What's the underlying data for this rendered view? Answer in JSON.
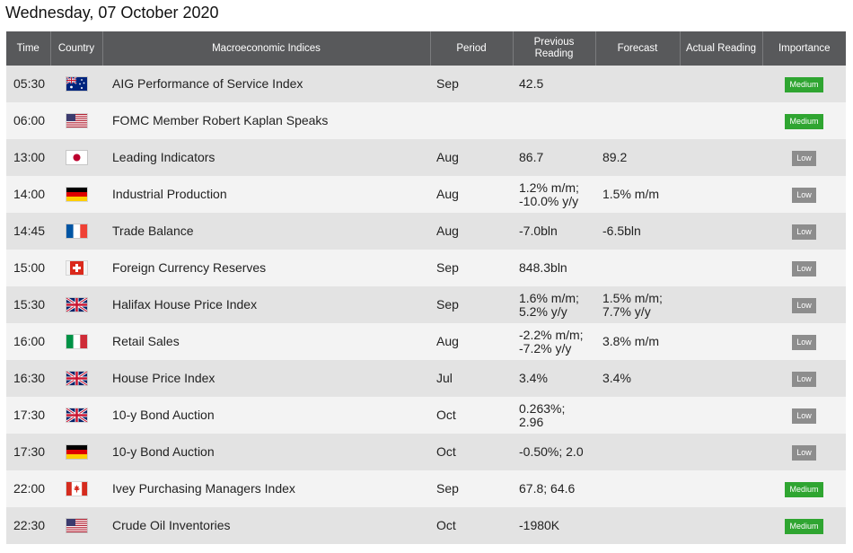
{
  "page_title": "Wednesday, 07 October 2020",
  "headers": {
    "time": "Time",
    "country": "Country",
    "indices": "Macroeconomic Indices",
    "period": "Period",
    "previous": "Previous Reading",
    "forecast": "Forecast",
    "actual": "Actual Reading",
    "importance": "Importance"
  },
  "colors": {
    "header_bg": "#58595b",
    "row_odd": "#e3e3e3",
    "row_even": "#f3f3f3",
    "medium": "#2fa531",
    "low": "#8d8d8d"
  },
  "rows": [
    {
      "time": "05:30",
      "flag": "australia-flag",
      "indicator": "AIG Performance of Service Index",
      "period": "Sep",
      "previous": [
        "42.5"
      ],
      "forecast": [],
      "actual": "",
      "importance": "Medium"
    },
    {
      "time": "06:00",
      "flag": "usa-flag",
      "indicator": "FOMC Member Robert Kaplan Speaks",
      "period": "",
      "previous": [],
      "forecast": [],
      "actual": "",
      "importance": "Medium"
    },
    {
      "time": "13:00",
      "flag": "japan-flag",
      "indicator": "Leading Indicators",
      "period": "Aug",
      "previous": [
        "86.7"
      ],
      "forecast": [
        "89.2"
      ],
      "actual": "",
      "importance": "Low"
    },
    {
      "time": "14:00",
      "flag": "germany-flag",
      "indicator": "Industrial Production",
      "period": "Aug",
      "previous": [
        "1.2% m/m;",
        "-10.0% y/y"
      ],
      "forecast": [
        "1.5% m/m"
      ],
      "actual": "",
      "importance": "Low"
    },
    {
      "time": "14:45",
      "flag": "france-flag",
      "indicator": "Trade Balance",
      "period": "Aug",
      "previous": [
        "-7.0bln"
      ],
      "forecast": [
        "-6.5bln"
      ],
      "actual": "",
      "importance": "Low"
    },
    {
      "time": "15:00",
      "flag": "switzerland-flag",
      "indicator": "Foreign Currency Reserves",
      "period": "Sep",
      "previous": [
        "848.3bln"
      ],
      "forecast": [],
      "actual": "",
      "importance": "Low"
    },
    {
      "time": "15:30",
      "flag": "uk-flag",
      "indicator": "Halifax House Price Index",
      "period": "Sep",
      "previous": [
        "1.6% m/m;",
        "5.2% y/y"
      ],
      "forecast": [
        "1.5% m/m;",
        "7.7% y/y"
      ],
      "actual": "",
      "importance": "Low"
    },
    {
      "time": "16:00",
      "flag": "italy-flag",
      "indicator": "Retail Sales",
      "period": "Aug",
      "previous": [
        "-2.2% m/m;",
        "-7.2% y/y"
      ],
      "forecast": [
        "3.8% m/m"
      ],
      "actual": "",
      "importance": "Low"
    },
    {
      "time": "16:30",
      "flag": "uk-flag",
      "indicator": "House Price Index",
      "period": "Jul",
      "previous": [
        "3.4%"
      ],
      "forecast": [
        "3.4%"
      ],
      "actual": "",
      "importance": "Low"
    },
    {
      "time": "17:30",
      "flag": "uk-flag",
      "indicator": "10-y Bond Auction",
      "period": "Oct",
      "previous": [
        "0.263%;",
        "2.96"
      ],
      "forecast": [],
      "actual": "",
      "importance": "Low"
    },
    {
      "time": "17:30",
      "flag": "germany-flag",
      "indicator": "10-y Bond Auction",
      "period": "Oct",
      "previous": [
        "-0.50%; 2.0"
      ],
      "forecast": [],
      "actual": "",
      "importance": "Low"
    },
    {
      "time": "22:00",
      "flag": "canada-flag",
      "indicator": "Ivey Purchasing Managers Index",
      "period": "Sep",
      "previous": [
        "67.8; 64.6"
      ],
      "forecast": [],
      "actual": "",
      "importance": "Medium"
    },
    {
      "time": "22:30",
      "flag": "usa-flag",
      "indicator": "Crude Oil Inventories",
      "period": "Oct",
      "previous": [
        "-1980K"
      ],
      "forecast": [],
      "actual": "",
      "importance": "Medium"
    }
  ]
}
